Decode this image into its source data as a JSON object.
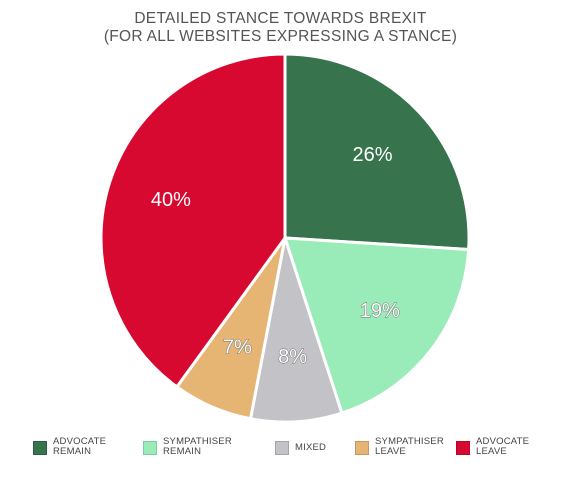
{
  "chart_data": {
    "type": "pie",
    "title_lines": [
      "DETAILED STANCE TOWARDS BREXIT",
      "(FOR ALL WEBSITES EXPRESSING A STANCE)"
    ],
    "slices": [
      {
        "name_lines": [
          "ADVOCATE",
          "REMAIN"
        ],
        "value": 26,
        "label": "26%",
        "color": "#37734d"
      },
      {
        "name_lines": [
          "SYMPATHISER",
          "REMAIN"
        ],
        "value": 19,
        "label": "19%",
        "color": "#99ebb8"
      },
      {
        "name_lines": [
          "MIXED"
        ],
        "value": 8,
        "label": "8%",
        "color": "#c2c2c7"
      },
      {
        "name_lines": [
          "SYMPATHISER",
          "LEAVE"
        ],
        "value": 7,
        "label": "7%",
        "color": "#e6b473"
      },
      {
        "name_lines": [
          "ADVOCATE",
          "LEAVE"
        ],
        "value": 40,
        "label": "40%",
        "color": "#d80930"
      }
    ],
    "legend_position": "bottom"
  }
}
